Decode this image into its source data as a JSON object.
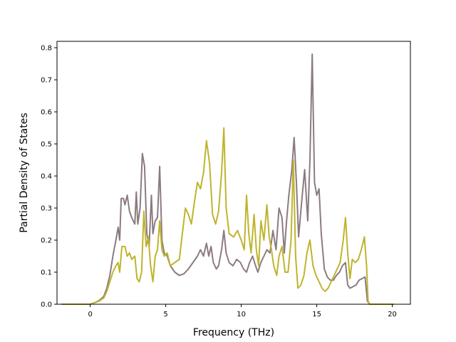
{
  "chart_data": {
    "type": "line",
    "title": "",
    "xlabel": "Frequency (THz)",
    "ylabel": "Partial Density of States",
    "xlim": [
      -2.2,
      21.2
    ],
    "ylim": [
      0.0,
      0.82
    ],
    "xticks": [
      0,
      5,
      10,
      15,
      20
    ],
    "xtick_labels": [
      "0",
      "5",
      "10",
      "15",
      "20"
    ],
    "yticks": [
      0.0,
      0.1,
      0.2,
      0.3,
      0.4,
      0.5,
      0.6,
      0.7,
      0.8
    ],
    "ytick_labels": [
      "0.0",
      "0.1",
      "0.2",
      "0.3",
      "0.4",
      "0.5",
      "0.6",
      "0.7",
      "0.8"
    ],
    "grid": false,
    "legend": "none",
    "series": [
      {
        "color": "#8c7b80",
        "points": [
          [
            -1.9,
            0.0
          ],
          [
            -0.5,
            0.0
          ],
          [
            0.0,
            0.0
          ],
          [
            0.3,
            0.005
          ],
          [
            0.6,
            0.012
          ],
          [
            0.9,
            0.025
          ],
          [
            1.1,
            0.05
          ],
          [
            1.3,
            0.09
          ],
          [
            1.5,
            0.15
          ],
          [
            1.7,
            0.2
          ],
          [
            1.85,
            0.24
          ],
          [
            1.95,
            0.2
          ],
          [
            2.05,
            0.33
          ],
          [
            2.2,
            0.33
          ],
          [
            2.3,
            0.31
          ],
          [
            2.45,
            0.34
          ],
          [
            2.6,
            0.29
          ],
          [
            2.75,
            0.27
          ],
          [
            2.95,
            0.25
          ],
          [
            3.05,
            0.35
          ],
          [
            3.15,
            0.25
          ],
          [
            3.3,
            0.3
          ],
          [
            3.45,
            0.47
          ],
          [
            3.6,
            0.43
          ],
          [
            3.75,
            0.22
          ],
          [
            3.9,
            0.18
          ],
          [
            4.05,
            0.34
          ],
          [
            4.15,
            0.22
          ],
          [
            4.3,
            0.26
          ],
          [
            4.45,
            0.27
          ],
          [
            4.6,
            0.43
          ],
          [
            4.75,
            0.2
          ],
          [
            4.9,
            0.16
          ],
          [
            5.1,
            0.15
          ],
          [
            5.3,
            0.12
          ],
          [
            5.6,
            0.1
          ],
          [
            5.9,
            0.09
          ],
          [
            6.2,
            0.095
          ],
          [
            6.5,
            0.11
          ],
          [
            6.8,
            0.13
          ],
          [
            7.1,
            0.15
          ],
          [
            7.3,
            0.17
          ],
          [
            7.5,
            0.15
          ],
          [
            7.7,
            0.19
          ],
          [
            7.85,
            0.15
          ],
          [
            8.0,
            0.18
          ],
          [
            8.15,
            0.13
          ],
          [
            8.35,
            0.11
          ],
          [
            8.5,
            0.12
          ],
          [
            8.7,
            0.17
          ],
          [
            8.85,
            0.23
          ],
          [
            9.0,
            0.16
          ],
          [
            9.2,
            0.13
          ],
          [
            9.45,
            0.12
          ],
          [
            9.7,
            0.14
          ],
          [
            9.95,
            0.13
          ],
          [
            10.15,
            0.11
          ],
          [
            10.35,
            0.1
          ],
          [
            10.55,
            0.13
          ],
          [
            10.75,
            0.15
          ],
          [
            10.95,
            0.12
          ],
          [
            11.1,
            0.1
          ],
          [
            11.3,
            0.13
          ],
          [
            11.5,
            0.15
          ],
          [
            11.7,
            0.17
          ],
          [
            11.9,
            0.16
          ],
          [
            12.1,
            0.23
          ],
          [
            12.3,
            0.17
          ],
          [
            12.5,
            0.3
          ],
          [
            12.7,
            0.27
          ],
          [
            12.85,
            0.16
          ],
          [
            13.0,
            0.26
          ],
          [
            13.15,
            0.34
          ],
          [
            13.35,
            0.42
          ],
          [
            13.5,
            0.52
          ],
          [
            13.65,
            0.38
          ],
          [
            13.8,
            0.21
          ],
          [
            14.0,
            0.32
          ],
          [
            14.2,
            0.42
          ],
          [
            14.4,
            0.26
          ],
          [
            14.55,
            0.45
          ],
          [
            14.7,
            0.78
          ],
          [
            14.85,
            0.38
          ],
          [
            15.0,
            0.34
          ],
          [
            15.15,
            0.36
          ],
          [
            15.3,
            0.22
          ],
          [
            15.5,
            0.11
          ],
          [
            15.7,
            0.085
          ],
          [
            15.9,
            0.075
          ],
          [
            16.1,
            0.075
          ],
          [
            16.3,
            0.09
          ],
          [
            16.5,
            0.1
          ],
          [
            16.7,
            0.12
          ],
          [
            16.9,
            0.13
          ],
          [
            17.05,
            0.06
          ],
          [
            17.2,
            0.05
          ],
          [
            17.4,
            0.055
          ],
          [
            17.6,
            0.06
          ],
          [
            17.8,
            0.075
          ],
          [
            18.0,
            0.08
          ],
          [
            18.2,
            0.085
          ],
          [
            18.35,
            0.01
          ],
          [
            18.5,
            0.0
          ],
          [
            20.1,
            0.0
          ]
        ]
      },
      {
        "color": "#bfb42d",
        "points": [
          [
            -1.9,
            0.0
          ],
          [
            -0.5,
            0.0
          ],
          [
            0.0,
            0.0
          ],
          [
            0.3,
            0.005
          ],
          [
            0.6,
            0.01
          ],
          [
            0.9,
            0.02
          ],
          [
            1.1,
            0.04
          ],
          [
            1.3,
            0.07
          ],
          [
            1.5,
            0.1
          ],
          [
            1.7,
            0.12
          ],
          [
            1.85,
            0.13
          ],
          [
            1.95,
            0.1
          ],
          [
            2.1,
            0.18
          ],
          [
            2.3,
            0.18
          ],
          [
            2.45,
            0.15
          ],
          [
            2.6,
            0.16
          ],
          [
            2.75,
            0.14
          ],
          [
            2.95,
            0.15
          ],
          [
            3.1,
            0.08
          ],
          [
            3.25,
            0.07
          ],
          [
            3.4,
            0.1
          ],
          [
            3.55,
            0.29
          ],
          [
            3.7,
            0.18
          ],
          [
            3.85,
            0.21
          ],
          [
            4.0,
            0.12
          ],
          [
            4.15,
            0.07
          ],
          [
            4.3,
            0.15
          ],
          [
            4.45,
            0.17
          ],
          [
            4.6,
            0.26
          ],
          [
            4.75,
            0.17
          ],
          [
            4.9,
            0.15
          ],
          [
            5.1,
            0.16
          ],
          [
            5.3,
            0.12
          ],
          [
            5.6,
            0.13
          ],
          [
            5.9,
            0.14
          ],
          [
            6.1,
            0.22
          ],
          [
            6.3,
            0.3
          ],
          [
            6.5,
            0.28
          ],
          [
            6.7,
            0.25
          ],
          [
            6.9,
            0.32
          ],
          [
            7.1,
            0.38
          ],
          [
            7.3,
            0.36
          ],
          [
            7.5,
            0.41
          ],
          [
            7.7,
            0.51
          ],
          [
            7.9,
            0.44
          ],
          [
            8.1,
            0.28
          ],
          [
            8.3,
            0.25
          ],
          [
            8.5,
            0.29
          ],
          [
            8.7,
            0.41
          ],
          [
            8.85,
            0.55
          ],
          [
            9.0,
            0.3
          ],
          [
            9.2,
            0.22
          ],
          [
            9.5,
            0.21
          ],
          [
            9.75,
            0.23
          ],
          [
            10.0,
            0.2
          ],
          [
            10.2,
            0.17
          ],
          [
            10.35,
            0.34
          ],
          [
            10.5,
            0.22
          ],
          [
            10.65,
            0.16
          ],
          [
            10.85,
            0.28
          ],
          [
            11.0,
            0.17
          ],
          [
            11.15,
            0.12
          ],
          [
            11.3,
            0.26
          ],
          [
            11.5,
            0.2
          ],
          [
            11.7,
            0.31
          ],
          [
            11.85,
            0.21
          ],
          [
            12.0,
            0.17
          ],
          [
            12.15,
            0.12
          ],
          [
            12.35,
            0.09
          ],
          [
            12.5,
            0.15
          ],
          [
            12.7,
            0.18
          ],
          [
            12.9,
            0.1
          ],
          [
            13.1,
            0.1
          ],
          [
            13.3,
            0.2
          ],
          [
            13.45,
            0.45
          ],
          [
            13.6,
            0.15
          ],
          [
            13.75,
            0.05
          ],
          [
            13.95,
            0.06
          ],
          [
            14.15,
            0.09
          ],
          [
            14.35,
            0.16
          ],
          [
            14.55,
            0.2
          ],
          [
            14.75,
            0.12
          ],
          [
            14.95,
            0.09
          ],
          [
            15.15,
            0.07
          ],
          [
            15.35,
            0.05
          ],
          [
            15.55,
            0.04
          ],
          [
            15.75,
            0.05
          ],
          [
            15.95,
            0.07
          ],
          [
            16.15,
            0.09
          ],
          [
            16.35,
            0.11
          ],
          [
            16.55,
            0.13
          ],
          [
            16.75,
            0.2
          ],
          [
            16.9,
            0.27
          ],
          [
            17.05,
            0.16
          ],
          [
            17.2,
            0.08
          ],
          [
            17.35,
            0.14
          ],
          [
            17.55,
            0.13
          ],
          [
            17.75,
            0.14
          ],
          [
            17.95,
            0.17
          ],
          [
            18.15,
            0.21
          ],
          [
            18.3,
            0.12
          ],
          [
            18.4,
            0.01
          ],
          [
            18.5,
            0.0
          ],
          [
            20.1,
            0.0
          ]
        ]
      }
    ]
  }
}
